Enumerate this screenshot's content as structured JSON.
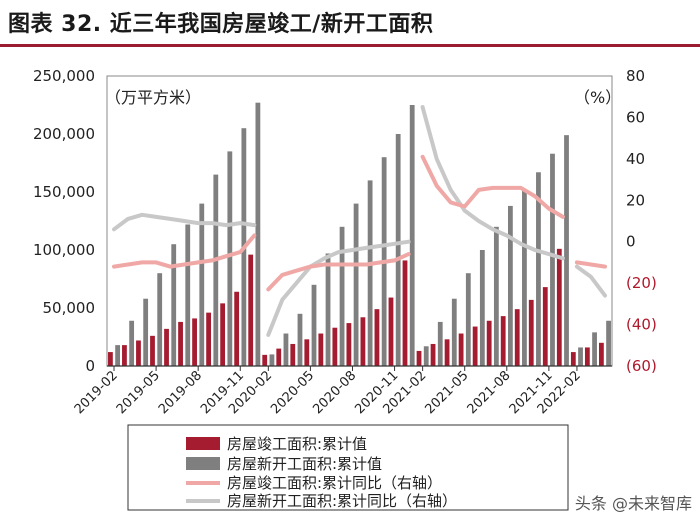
{
  "title": "图表 32. 近三年我国房屋竣工/新开工面积",
  "watermark": "头条 @未来智库",
  "chart_data": {
    "type": "bar+line",
    "left_unit": "（万平方米）",
    "right_unit": "（%）",
    "ylim_left": [
      0,
      250000
    ],
    "ylim_right": [
      -60,
      80
    ],
    "left_ticks": [
      "0",
      "50,000",
      "100,000",
      "150,000",
      "200,000",
      "250,000"
    ],
    "right_ticks": [
      {
        "label": "(60)",
        "value": -60,
        "negative": true
      },
      {
        "label": "(40)",
        "value": -40,
        "negative": true
      },
      {
        "label": "(20)",
        "value": -20,
        "negative": true
      },
      {
        "label": "0",
        "value": 0,
        "negative": false
      },
      {
        "label": "20",
        "value": 20,
        "negative": false
      },
      {
        "label": "40",
        "value": 40,
        "negative": false
      },
      {
        "label": "60",
        "value": 60,
        "negative": false
      },
      {
        "label": "80",
        "value": 80,
        "negative": false
      }
    ],
    "x_tick_labels": [
      "2019-02",
      "2019-05",
      "2019-08",
      "2019-11",
      "2020-02",
      "2020-05",
      "2020-08",
      "2020-11",
      "2021-02",
      "2021-05",
      "2021-08",
      "2021-11",
      "2022-02"
    ],
    "categories": [
      "2019-02",
      "2019-03",
      "2019-04",
      "2019-05",
      "2019-06",
      "2019-07",
      "2019-08",
      "2019-09",
      "2019-10",
      "2019-11",
      "2019-12",
      "2020-02",
      "2020-03",
      "2020-04",
      "2020-05",
      "2020-06",
      "2020-07",
      "2020-08",
      "2020-09",
      "2020-10",
      "2020-11",
      "2020-12",
      "2021-02",
      "2021-03",
      "2021-04",
      "2021-05",
      "2021-06",
      "2021-07",
      "2021-08",
      "2021-09",
      "2021-10",
      "2021-11",
      "2021-12",
      "2022-02",
      "2022-03",
      "2022-04"
    ],
    "series": [
      {
        "name": "房屋竣工面积:累计值",
        "type": "bar",
        "axis": "left",
        "color": "#a51c30",
        "values": [
          12000,
          18000,
          22000,
          26000,
          32000,
          38000,
          41000,
          46000,
          54000,
          64000,
          96000,
          9600,
          15000,
          19000,
          23000,
          28000,
          33000,
          37000,
          42000,
          49000,
          59000,
          91000,
          13000,
          19000,
          23000,
          28000,
          34000,
          39000,
          43000,
          49000,
          57000,
          68000,
          101000,
          12000,
          16000,
          20000
        ]
      },
      {
        "name": "房屋新开工面积:累计值",
        "type": "bar",
        "axis": "left",
        "color": "#7f7f7f",
        "values": [
          18000,
          39000,
          58000,
          80000,
          105000,
          122000,
          140000,
          165000,
          185000,
          205000,
          227000,
          10000,
          28000,
          45000,
          70000,
          97000,
          120000,
          140000,
          160000,
          180000,
          200000,
          225000,
          17000,
          38000,
          58000,
          80000,
          100000,
          120000,
          138000,
          152000,
          167000,
          183000,
          199000,
          16000,
          29000,
          39000
        ]
      },
      {
        "name": "房屋竣工面积:累计同比（右轴）",
        "type": "line",
        "axis": "right",
        "color": "#f0a8a6",
        "values": [
          -12,
          -11,
          -10,
          -10,
          -12,
          -11,
          -10,
          -9,
          -7,
          -5,
          3,
          -23,
          -16,
          -14,
          -12,
          -11,
          -11,
          -11,
          -11,
          -10,
          -9,
          -6,
          41,
          27,
          19,
          17,
          25,
          26,
          26,
          26,
          22,
          16,
          12,
          -10,
          -11,
          -12
        ]
      },
      {
        "name": "房屋新开工面积:累计同比（右轴）",
        "type": "line",
        "axis": "right",
        "color": "#c8c8c8",
        "values": [
          6,
          11,
          13,
          12,
          11,
          10,
          9,
          9,
          8,
          9,
          8,
          -45,
          -28,
          -20,
          -12,
          -8,
          -5,
          -4,
          -3,
          -2,
          -1,
          0,
          65,
          40,
          25,
          15,
          10,
          6,
          3,
          -1,
          -4,
          -6,
          -8,
          -12,
          -17,
          -26
        ]
      }
    ]
  }
}
